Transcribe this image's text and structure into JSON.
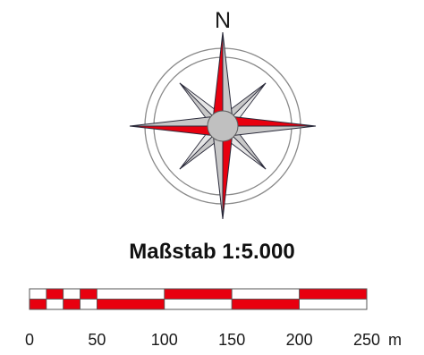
{
  "compass": {
    "north_label": "N"
  },
  "scale_bar": {
    "title": "Maßstab 1:5.000",
    "unit": "m",
    "max_distance": 250,
    "ticks": [
      0,
      50,
      100,
      150,
      200,
      250
    ],
    "segments": [
      0,
      12.5,
      25,
      37.5,
      50,
      100,
      150,
      200,
      250
    ],
    "colors": {
      "fill": "#e8000f",
      "empty": "#ffffff",
      "outline": "#555555"
    }
  },
  "colors": {
    "point_red": "#e8000f",
    "point_gray": "#c8c8c8",
    "outline": "#2a2a3a",
    "ring": "#8a8a8a",
    "center": "#c0c0c0"
  }
}
